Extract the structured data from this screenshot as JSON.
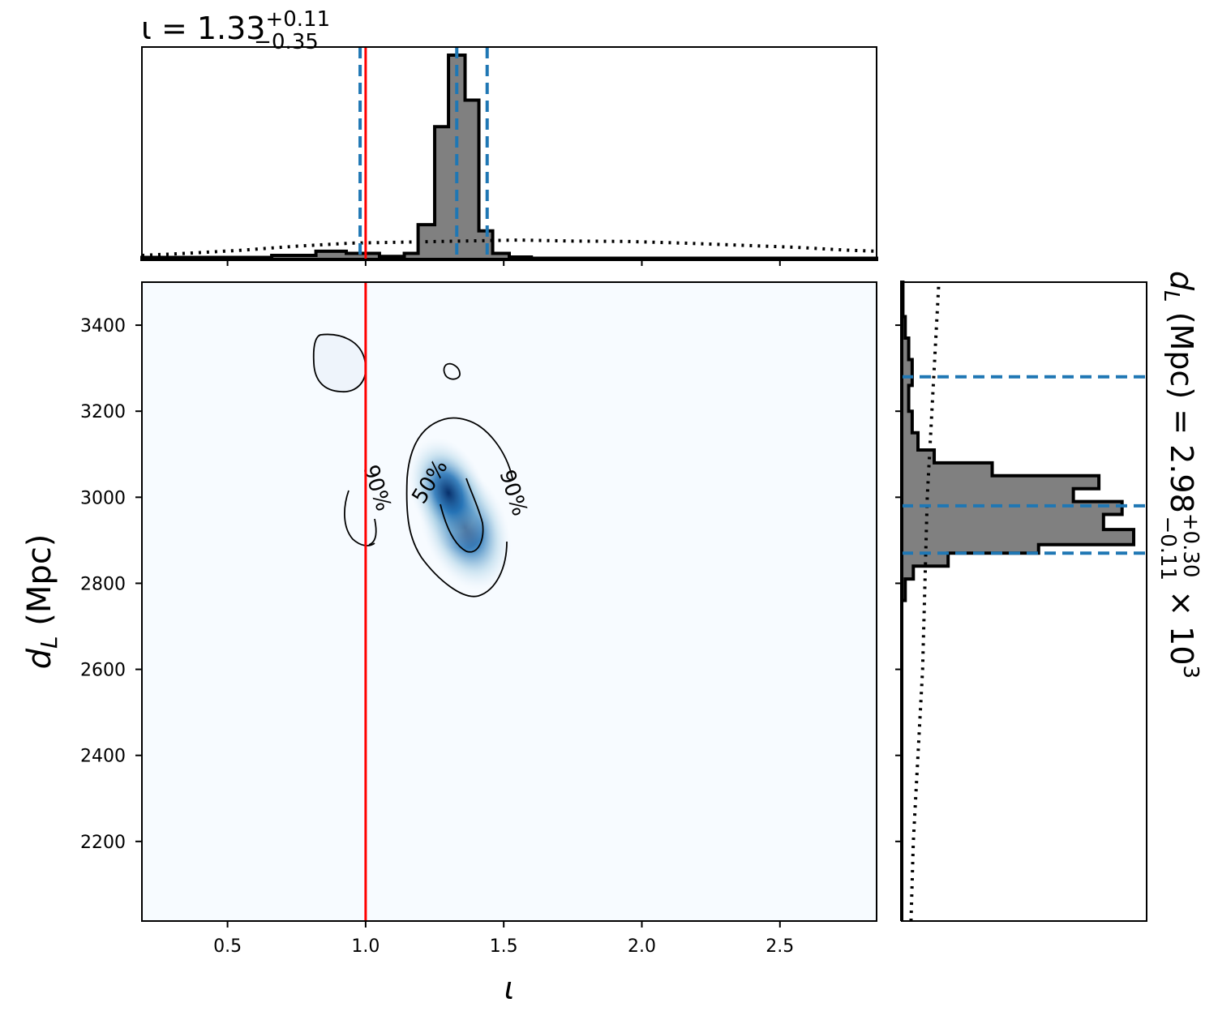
{
  "chart_data": [
    {
      "panel": "top-marginal",
      "type": "histogram",
      "title_main": "ι = 1.33",
      "title_sup": "+0.11",
      "title_sub": "−0.35",
      "xlim": [
        0.19,
        2.85
      ],
      "bins": [
        {
          "x0": 0.19,
          "x1": 0.66,
          "h": 0.01
        },
        {
          "x0": 0.66,
          "x1": 0.82,
          "h": 0.02
        },
        {
          "x0": 0.82,
          "x1": 0.93,
          "h": 0.04
        },
        {
          "x0": 0.93,
          "x1": 1.05,
          "h": 0.03
        },
        {
          "x0": 1.05,
          "x1": 1.14,
          "h": 0.015
        },
        {
          "x0": 1.14,
          "x1": 1.19,
          "h": 0.03
        },
        {
          "x0": 1.19,
          "x1": 1.25,
          "h": 0.17
        },
        {
          "x0": 1.25,
          "x1": 1.3,
          "h": 0.65
        },
        {
          "x0": 1.3,
          "x1": 1.36,
          "h": 1.0
        },
        {
          "x0": 1.36,
          "x1": 1.41,
          "h": 0.78
        },
        {
          "x0": 1.41,
          "x1": 1.46,
          "h": 0.14
        },
        {
          "x0": 1.46,
          "x1": 1.52,
          "h": 0.03
        },
        {
          "x0": 1.52,
          "x1": 1.6,
          "h": 0.012
        },
        {
          "x0": 1.6,
          "x1": 2.85,
          "h": 0.006
        }
      ],
      "prior_dotted": {
        "x": [
          0.19,
          0.35,
          0.55,
          0.75,
          0.95,
          1.15,
          1.35,
          1.55,
          1.75,
          1.95,
          2.15,
          2.35,
          2.55,
          2.75,
          2.85
        ],
        "y": [
          0.02,
          0.03,
          0.045,
          0.065,
          0.08,
          0.085,
          0.09,
          0.095,
          0.09,
          0.088,
          0.08,
          0.07,
          0.06,
          0.045,
          0.04
        ]
      },
      "quantiles": [
        0.98,
        1.33,
        1.44
      ],
      "truth": 1.0
    },
    {
      "panel": "joint",
      "type": "heatmap",
      "xlabel": "ι",
      "ylabel": "d",
      "ylabel_sub": "L",
      "ylabel_unit": " (Mpc)",
      "xlim": [
        0.19,
        2.85
      ],
      "ylim": [
        2015,
        3500
      ],
      "xticks": [
        0.5,
        1.0,
        1.5,
        2.0,
        2.5
      ],
      "xtick_labels": [
        "0.5",
        "1.0",
        "1.5",
        "2.0",
        "2.5"
      ],
      "yticks": [
        2200,
        2400,
        2600,
        2800,
        3000,
        3200,
        3400
      ],
      "ytick_labels": [
        "2200",
        "2400",
        "2600",
        "2800",
        "3000",
        "3200",
        "3400"
      ],
      "density_peaks": [
        {
          "x": 1.36,
          "y": 2930,
          "w": 1.0
        },
        {
          "x": 1.3,
          "y": 3010,
          "w": 0.85
        }
      ],
      "contours": [
        {
          "level": "50%",
          "label": "50%"
        },
        {
          "level": "90%",
          "label": "90%"
        }
      ],
      "truth": 1.0
    },
    {
      "panel": "right-marginal",
      "type": "histogram",
      "orientation": "horizontal",
      "title_main": "d",
      "title_sub_letter": "L",
      "title_text": " (Mpc) = 2.98",
      "title_sup": "+0.30",
      "title_sub": "−0.11",
      "title_factor": " × 10",
      "title_exp": "3",
      "ylim": [
        2015,
        3500
      ],
      "bins": [
        {
          "y0": 2015,
          "y1": 2760,
          "h": 0.0
        },
        {
          "y0": 2760,
          "y1": 2810,
          "h": 0.015
        },
        {
          "y0": 2810,
          "y1": 2840,
          "h": 0.05
        },
        {
          "y0": 2840,
          "y1": 2870,
          "h": 0.2
        },
        {
          "y0": 2870,
          "y1": 2890,
          "h": 0.59
        },
        {
          "y0": 2890,
          "y1": 2925,
          "h": 1.0
        },
        {
          "y0": 2925,
          "y1": 2960,
          "h": 0.87
        },
        {
          "y0": 2960,
          "y1": 2990,
          "h": 0.95
        },
        {
          "y0": 2990,
          "y1": 3020,
          "h": 0.74
        },
        {
          "y0": 3020,
          "y1": 3050,
          "h": 0.85
        },
        {
          "y0": 3050,
          "y1": 3080,
          "h": 0.39
        },
        {
          "y0": 3080,
          "y1": 3110,
          "h": 0.14
        },
        {
          "y0": 3110,
          "y1": 3150,
          "h": 0.07
        },
        {
          "y0": 3150,
          "y1": 3200,
          "h": 0.045
        },
        {
          "y0": 3200,
          "y1": 3260,
          "h": 0.03
        },
        {
          "y0": 3260,
          "y1": 3320,
          "h": 0.045
        },
        {
          "y0": 3320,
          "y1": 3370,
          "h": 0.03
        },
        {
          "y0": 3370,
          "y1": 3420,
          "h": 0.015
        },
        {
          "y0": 3420,
          "y1": 3500,
          "h": 0.005
        }
      ],
      "prior_dotted": {
        "y": [
          2015,
          2200,
          2400,
          2600,
          2800,
          3000,
          3200,
          3400,
          3500
        ],
        "x": [
          0.04,
          0.05,
          0.07,
          0.09,
          0.1,
          0.11,
          0.13,
          0.15,
          0.16
        ]
      },
      "quantiles": [
        2870,
        2980,
        3280
      ]
    }
  ],
  "colors": {
    "hist_fill": "#808080",
    "hist_edge": "#000000",
    "quantile_line": "#1f77b4",
    "truth_line": "#ff0000",
    "heatmap_low": "#f7fbff",
    "heatmap_high": "#08306b"
  }
}
